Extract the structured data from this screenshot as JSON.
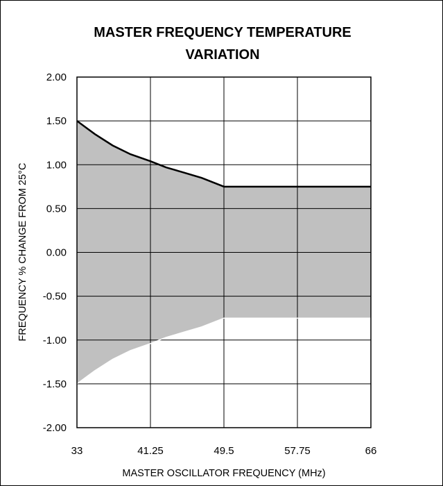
{
  "chart_data": {
    "type": "area",
    "title_lines": [
      "MASTER FREQUENCY TEMPERATURE",
      "VARIATION"
    ],
    "xlabel": "MASTER OSCILLATOR FREQUENCY (MHz)",
    "ylabel": "FREQUENCY % CHANGE FROM 25°C",
    "xlim": [
      33,
      66
    ],
    "ylim": [
      -2.0,
      2.0
    ],
    "x_ticks": [
      "33",
      "41.25",
      "49.5",
      "57.75",
      "66"
    ],
    "y_ticks": [
      "2.00",
      "1.50",
      "1.00",
      "0.50",
      "0.00",
      "-0.50",
      "-1.00",
      "-1.50",
      "-2.00"
    ],
    "grid": true,
    "fill_color": "#c0c0c0",
    "line_color": "#000000",
    "series": [
      {
        "x": [
          33,
          35,
          37,
          39,
          41.25,
          43,
          45,
          47,
          49.5,
          57.75,
          66
        ],
        "upper": [
          1.5,
          1.35,
          1.22,
          1.12,
          1.04,
          0.97,
          0.91,
          0.85,
          0.75,
          0.75,
          0.75
        ],
        "lower": [
          -1.5,
          -1.35,
          -1.22,
          -1.12,
          -1.04,
          -0.97,
          -0.91,
          -0.85,
          -0.75,
          -0.75,
          -0.75
        ]
      }
    ]
  }
}
